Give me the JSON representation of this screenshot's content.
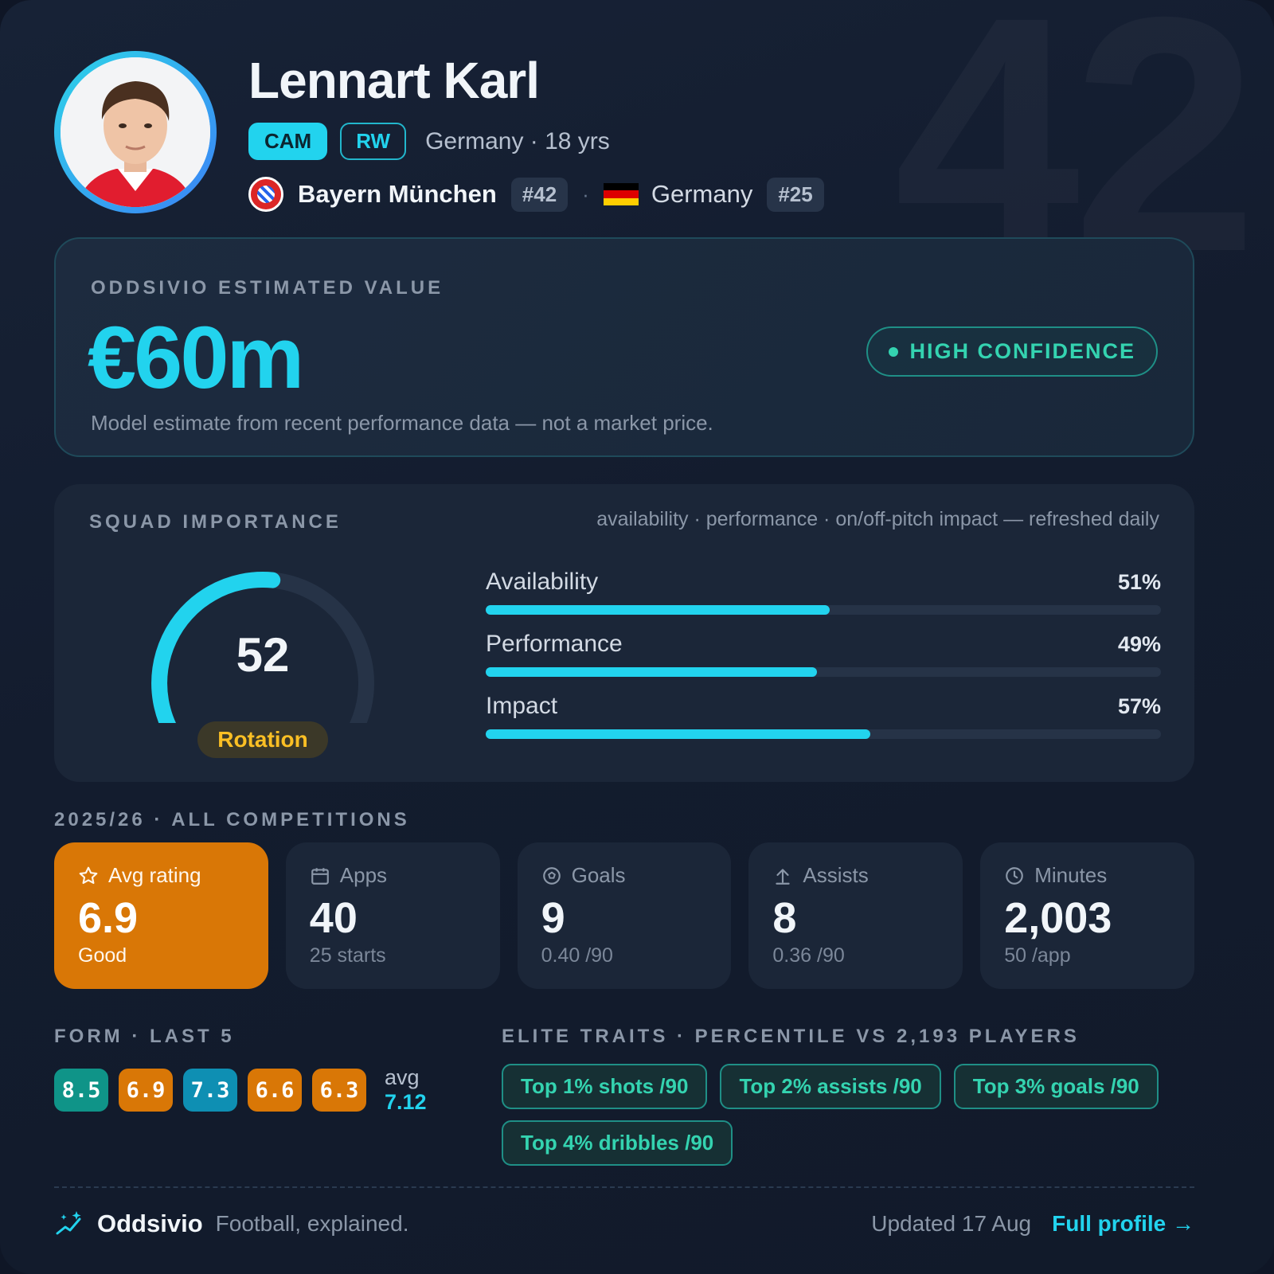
{
  "watermark_number": "42",
  "player": {
    "name": "Lennart Karl",
    "positions": [
      "CAM",
      "RW"
    ],
    "meta": "Germany · 18 yrs",
    "club": "Bayern München",
    "club_number": "#42",
    "separator": "·",
    "national_team": "Germany",
    "national_number": "#25"
  },
  "valuation": {
    "eyebrow": "ODDSIVIO ESTIMATED VALUE",
    "value": "€60m",
    "confidence": "HIGH CONFIDENCE",
    "disclaimer": "Model estimate from recent performance data — not a market price."
  },
  "squad": {
    "eyebrow": "SQUAD IMPORTANCE",
    "subtitle": "availability · performance · on/off-pitch impact — refreshed daily",
    "score": "52",
    "score_fraction": 0.52,
    "tier": "Rotation",
    "bars": [
      {
        "label": "Availability",
        "pct_text": "51%",
        "value": 51
      },
      {
        "label": "Performance",
        "pct_text": "49%",
        "value": 49
      },
      {
        "label": "Impact",
        "pct_text": "57%",
        "value": 57
      }
    ]
  },
  "season": {
    "eyebrow": "2025/26 · ALL COMPETITIONS",
    "stats": [
      {
        "icon": "star-icon",
        "label": "Avg rating",
        "value": "6.9",
        "sub": "Good"
      },
      {
        "icon": "calendar-icon",
        "label": "Apps",
        "value": "40",
        "sub": "25 starts"
      },
      {
        "icon": "ball-icon",
        "label": "Goals",
        "value": "9",
        "sub": "0.40 /90"
      },
      {
        "icon": "arrow-up-icon",
        "label": "Assists",
        "value": "8",
        "sub": "0.36 /90"
      },
      {
        "icon": "clock-icon",
        "label": "Minutes",
        "value": "2,003",
        "sub": "50 /app"
      }
    ]
  },
  "form": {
    "eyebrow": "FORM · LAST 5",
    "ratings": [
      {
        "value": "8.5",
        "color": "#0f9488"
      },
      {
        "value": "6.9",
        "color": "#d97706"
      },
      {
        "value": "7.3",
        "color": "#0e8fb3"
      },
      {
        "value": "6.6",
        "color": "#d97706"
      },
      {
        "value": "6.3",
        "color": "#d97706"
      }
    ],
    "avg_label": "avg",
    "avg_value": "7.12"
  },
  "traits": {
    "eyebrow": "ELITE TRAITS · PERCENTILE VS 2,193 PLAYERS",
    "items": [
      "Top 1% shots /90",
      "Top 2% assists /90",
      "Top 3% goals /90",
      "Top 4% dribbles /90"
    ]
  },
  "footer": {
    "brand": "Oddsivio",
    "tagline": "Football, explained.",
    "updated": "Updated 17 Aug",
    "link": "Full profile →"
  },
  "colors": {
    "accent": "#22d3ee",
    "highlight": "#d97706",
    "teal": "#34d3b0",
    "tier": "#fbbf24"
  }
}
